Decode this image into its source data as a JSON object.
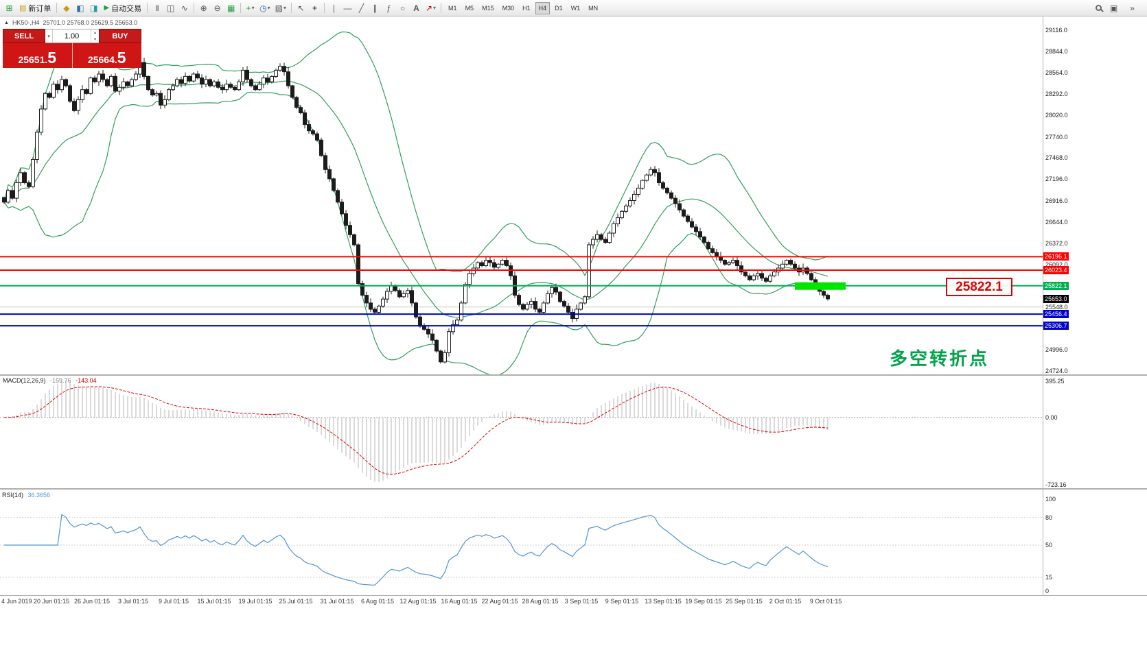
{
  "colors": {
    "band": "#2e9e5b",
    "candle": "#1c1c1c",
    "macd_hist": "#b4b4b4",
    "macd_signal": "#e00000",
    "rsi_line": "#4f93d6",
    "highlight_green": "#00e600"
  },
  "toolbar": {
    "new_order": "新订单",
    "auto_trading": "自动交易",
    "timeframes": [
      "M1",
      "M5",
      "M15",
      "M30",
      "H1",
      "H4",
      "D1",
      "W1",
      "MN"
    ],
    "active_timeframe": "H4"
  },
  "icons": {
    "new_chart": "⊞",
    "new_order": "▤",
    "market_watch": "◆",
    "data_window": "◧",
    "navigator": "◨",
    "auto_play": "▶",
    "chart_bars": "|||",
    "chart_candles": "◫",
    "chart_line": "∿",
    "zoom_in": "⊕",
    "zoom_out": "⊖",
    "tile_windows": "▦",
    "add_indicator": "+",
    "periods": "◷",
    "templates": "▨",
    "cursor": "↖",
    "crosshair": "+",
    "vline": "∣",
    "hline": "―",
    "trendline": "╱",
    "channel": "∥",
    "fibonacci": "ƒ",
    "shapes": "○",
    "text_tool": "A",
    "arrows_tool": "↗",
    "dropdown": "▾",
    "overflow": "»",
    "workspace": "▣"
  },
  "chart": {
    "collapse_arrow": "▲",
    "symbol": "HK50-,H4",
    "ohlc": "25701.0 25768.0 25629.5 25653.0",
    "annotation": "多空转折点",
    "callout": "25822.1"
  },
  "order_panel": {
    "sell_label": "SELL",
    "buy_label": "BUY",
    "volume": "1.00",
    "sell_main": "25651.",
    "sell_pip": "5",
    "buy_main": "25664.",
    "buy_pip": "5"
  },
  "price_axis": [
    "29116.0",
    "28844.0",
    "28564.0",
    "28292.0",
    "28020.0",
    "27740.0",
    "27468.0",
    "27196.0",
    "26916.0",
    "26644.0",
    "26372.0",
    "26092.0",
    "25548.0",
    "24996.0",
    "24724.0"
  ],
  "levels": [
    {
      "value": 26196.1,
      "label": "26196.1",
      "line": "#ff0000",
      "tag": "#ff0000"
    },
    {
      "value": 26023.4,
      "label": "26023.4",
      "line": "#ff0000",
      "tag": "#ff0000"
    },
    {
      "value": 25822.1,
      "label": "25822.1",
      "line": "#00b050",
      "tag": "#00b050"
    },
    {
      "value": 25653.0,
      "label": "25653.0",
      "line": null,
      "tag": "#000000"
    },
    {
      "value": 25456.4,
      "label": "25456.4",
      "line": "#0000cc",
      "tag": "#0000cc"
    },
    {
      "value": 25306.7,
      "label": "25306.7",
      "line": "#0000cc",
      "tag": "#0000cc"
    }
  ],
  "gray_level": 25548.0,
  "highlight_bar": {
    "value": 25822.1,
    "x": 1158,
    "width": 74
  },
  "chart_data": {
    "type": "candlestick",
    "symbol": "HK50-",
    "timeframe": "H4",
    "ohlc_display": {
      "open": "25701.0",
      "high": "25768.0",
      "low": "25629.5",
      "close": "25653.0"
    },
    "y_range": [
      24689,
      29293
    ],
    "bollinger_period": 20,
    "closes": [
      26900,
      27050,
      26950,
      27150,
      27280,
      27150,
      27100,
      27450,
      27800,
      28100,
      28300,
      28250,
      28420,
      28350,
      28480,
      28400,
      28200,
      28080,
      28220,
      28350,
      28300,
      28500,
      28450,
      28550,
      28480,
      28400,
      28520,
      28330,
      28380,
      28450,
      28400,
      28480,
      28550,
      28700,
      28520,
      28350,
      28280,
      28300,
      28150,
      28220,
      28350,
      28400,
      28480,
      28430,
      28520,
      28460,
      28550,
      28500,
      28420,
      28480,
      28400,
      28450,
      28380,
      28350,
      28420,
      28380,
      28350,
      28450,
      28600,
      28480,
      28400,
      28350,
      28420,
      28500,
      28450,
      28520,
      28600,
      28650,
      28580,
      28400,
      28250,
      28120,
      28050,
      27900,
      27820,
      27780,
      27700,
      27500,
      27320,
      27200,
      27050,
      26900,
      26750,
      26600,
      26480,
      26350,
      25850,
      25700,
      25600,
      25520,
      25480,
      25560,
      25650,
      25750,
      25820,
      25760,
      25680,
      25720,
      25760,
      25600,
      25420,
      25300,
      25260,
      25200,
      25120,
      24980,
      24840,
      24960,
      25230,
      25320,
      25380,
      25600,
      25840,
      25980,
      26050,
      26120,
      26080,
      26150,
      26120,
      26060,
      26100,
      26150,
      26080,
      25950,
      25700,
      25580,
      25520,
      25580,
      25620,
      25520,
      25480,
      25600,
      25720,
      25800,
      25740,
      25620,
      25560,
      25480,
      25400,
      25520,
      25600,
      25680,
      26350,
      26420,
      26480,
      26420,
      26380,
      26500,
      26620,
      26700,
      26780,
      26850,
      26920,
      27000,
      27080,
      27180,
      27250,
      27320,
      27280,
      27150,
      27080,
      27020,
      26950,
      26880,
      26800,
      26720,
      26650,
      26580,
      26520,
      26450,
      26380,
      26300,
      26250,
      26200,
      26150,
      26100,
      26120,
      26150,
      26080,
      26000,
      25950,
      25900,
      25950,
      25980,
      25920,
      25880,
      25950,
      26000,
      26050,
      26100,
      26150,
      26100,
      26050,
      26000,
      26050,
      25980,
      25900,
      25820,
      25750,
      25700,
      25653
    ],
    "indicators": {
      "macd_name": "MACD(12,26,9)",
      "macd_v1": "-159.76",
      "macd_v2": "-143.04",
      "macd_axis": [
        "395.25",
        "0.00",
        "-723.16"
      ],
      "rsi_name": "RSI(14)",
      "rsi_value": "36.3656",
      "rsi_axis": [
        "100",
        "80",
        "50",
        "15",
        "0"
      ]
    },
    "time_axis": [
      "4 Jun 2019",
      "20 Jun 01:15",
      "26 Jun 01:15",
      "3 Jul 01:15",
      "9 Jul 01:15",
      "15 Jul 01:15",
      "19 Jul 01:15",
      "25 Jul 01:15",
      "31 Jul 01:15",
      "6 Aug 01:15",
      "12 Aug 01:15",
      "16 Aug 01:15",
      "22 Aug 01:15",
      "28 Aug 01:15",
      "3 Sep 01:15",
      "9 Sep 01:15",
      "13 Sep 01:15",
      "19 Sep 01:15",
      "25 Sep 01:15",
      "2 Oct 01:15",
      "9 Oct 01:15"
    ]
  }
}
